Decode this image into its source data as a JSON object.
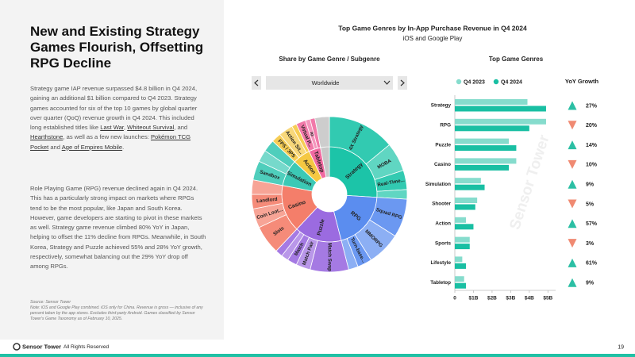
{
  "header": {
    "title": "New and Existing Strategy Games Flourish, Offsetting RPG Decline",
    "paragraphs": [
      [
        "Strategy game IAP revenue surpassed $4.8 billion in Q4 2024, gaining an additional $1 billion compared to Q4 2023. Strategy games accounted for six of the top 10 games by global quarter over quarter (QoQ) revenue growth in Q4 2024. This included long established titles like ",
        {
          "link": "Last War"
        },
        ", ",
        {
          "link": "Whiteout Survival"
        },
        ", and ",
        {
          "link": "Hearthstone"
        },
        ", as well as a few new launches: ",
        {
          "link": "Pokémon TCG Pocket"
        },
        " and ",
        {
          "link": "Age of Empires Mobile"
        },
        "."
      ],
      [
        "Role Playing Game (RPG) revenue declined again in Q4 2024. This has a particularly strong impact on markets where RPGs tend to be the most popular, like Japan and South Korea. However, game developers are starting to pivot in these markets as well. Strategy game revenue climbed 80% YoY in Japan, helping to offset the 11% decline from RPGs. Meanwhile, in South Korea, Strategy and Puzzle achieved 55% and 28% YoY growth, respectively, somewhat balancing out the 29% YoY drop off among RPGs."
      ]
    ],
    "source": "Source: Sensor Tower",
    "note": "Note: iOS and Google Play combined. iOS only for China. Revenue is gross — inclusive of any percent taken by the app stores. Excludes third-party Android. Games classified by Sensor Tower's Game Taxonomy as of February 10, 2025."
  },
  "figure": {
    "title": "Top Game Genres by In-App Purchase Revenue in Q4 2024",
    "subtitle": "iOS and Google Play",
    "watermark": "Sensor Tower"
  },
  "footer": {
    "brand": "Sensor Tower",
    "rights": "All Rights Reserved",
    "page": 19
  },
  "chart_data": [
    {
      "type": "sunburst",
      "title": "Share by Game Genre / Subgenre",
      "region_selector": "Worldwide",
      "genres": [
        {
          "name": "Strategy",
          "color": "#1cc4a8",
          "value": 26,
          "children": [
            {
              "name": "4X Strategy",
              "value": 14
            },
            {
              "name": "MOBA",
              "value": 6
            },
            {
              "name": "Real-Time...",
              "value": 4
            },
            {
              "name": null,
              "value": 2
            }
          ]
        },
        {
          "name": "RPG",
          "color": "#5b8def",
          "value": 20,
          "children": [
            {
              "name": "Squad RPG",
              "value": 8
            },
            {
              "name": "MMORPG",
              "value": 7
            },
            {
              "name": "Turn-base...",
              "value": 3
            },
            {
              "name": null,
              "value": 2
            }
          ]
        },
        {
          "name": "Puzzle",
          "color": "#9b6be0",
          "value": 16,
          "children": [
            {
              "name": "Match Swap",
              "value": 8
            },
            {
              "name": "Match Pair",
              "value": 3
            },
            {
              "name": "Match",
              "value": 2
            },
            {
              "name": null,
              "value": 1.5
            },
            {
              "name": null,
              "value": 1.5
            }
          ]
        },
        {
          "name": "Casino",
          "color": "#f47e6a",
          "value": 16,
          "children": [
            {
              "name": "Slots",
              "value": 6
            },
            {
              "name": "Coin Loot...",
              "value": 4
            },
            {
              "name": "Landlord",
              "value": 3
            },
            {
              "name": null,
              "value": 3
            }
          ]
        },
        {
          "name": "Simulation",
          "color": "#3cc9b5",
          "value": 9,
          "children": [
            {
              "name": "Sandbox",
              "value": 4
            },
            {
              "name": null,
              "value": 2.5
            },
            {
              "name": null,
              "value": 2.5
            }
          ]
        },
        {
          "name": "Action",
          "color": "#f5c842",
          "value": 6,
          "children": [
            {
              "name": "FPS / 3PS",
              "value": 2
            },
            {
              "name": "Action Sit...",
              "value": 3
            },
            {
              "name": null,
              "value": 1
            }
          ]
        },
        {
          "name": "Tabletop",
          "color": "#f06aa0",
          "value": 4,
          "children": [
            {
              "name": "Virtual P...",
              "value": 2
            },
            {
              "name": "Io",
              "value": 1
            },
            {
              "name": null,
              "value": 1
            }
          ]
        },
        {
          "name": null,
          "color": "#c8c8c8",
          "value": 3,
          "children": [
            {
              "name": null,
              "value": 3
            }
          ]
        }
      ]
    },
    {
      "type": "bar",
      "orientation": "horizontal",
      "title": "Top Game Genres",
      "categories": [
        "Strategy",
        "RPG",
        "Puzzle",
        "Casino",
        "Simulation",
        "Shooter",
        "Action",
        "Sports",
        "Lifestyle",
        "Tabletop"
      ],
      "series": [
        {
          "name": "Q4 2023",
          "color": "#86dccd",
          "values": [
            3.9,
            4.9,
            2.9,
            3.3,
            1.4,
            1.2,
            0.6,
            0.8,
            0.4,
            0.5
          ]
        },
        {
          "name": "Q4 2024",
          "color": "#19bfa3",
          "values": [
            4.9,
            4.0,
            3.3,
            2.9,
            1.6,
            1.1,
            1.0,
            0.8,
            0.6,
            0.6
          ]
        }
      ],
      "xlim": [
        0,
        5.2
      ],
      "xticks": [
        0,
        {
          "value": 1,
          "label": "$1B"
        },
        {
          "value": 2,
          "label": "$2B"
        },
        {
          "value": 3,
          "label": "$3B"
        },
        {
          "value": 4,
          "label": "$4B"
        },
        {
          "value": 5,
          "label": "$5B"
        }
      ],
      "yoy": {
        "title": "YoY Growth",
        "values": [
          27,
          -20,
          14,
          -10,
          9,
          -5,
          57,
          -3,
          61,
          9
        ],
        "value_labels": [
          "27%",
          "20%",
          "14%",
          "10%",
          "9%",
          "5%",
          "57%",
          "3%",
          "61%",
          "9%"
        ],
        "up_color": "#2bbfa4",
        "down_color": "#f08a72"
      }
    }
  ]
}
